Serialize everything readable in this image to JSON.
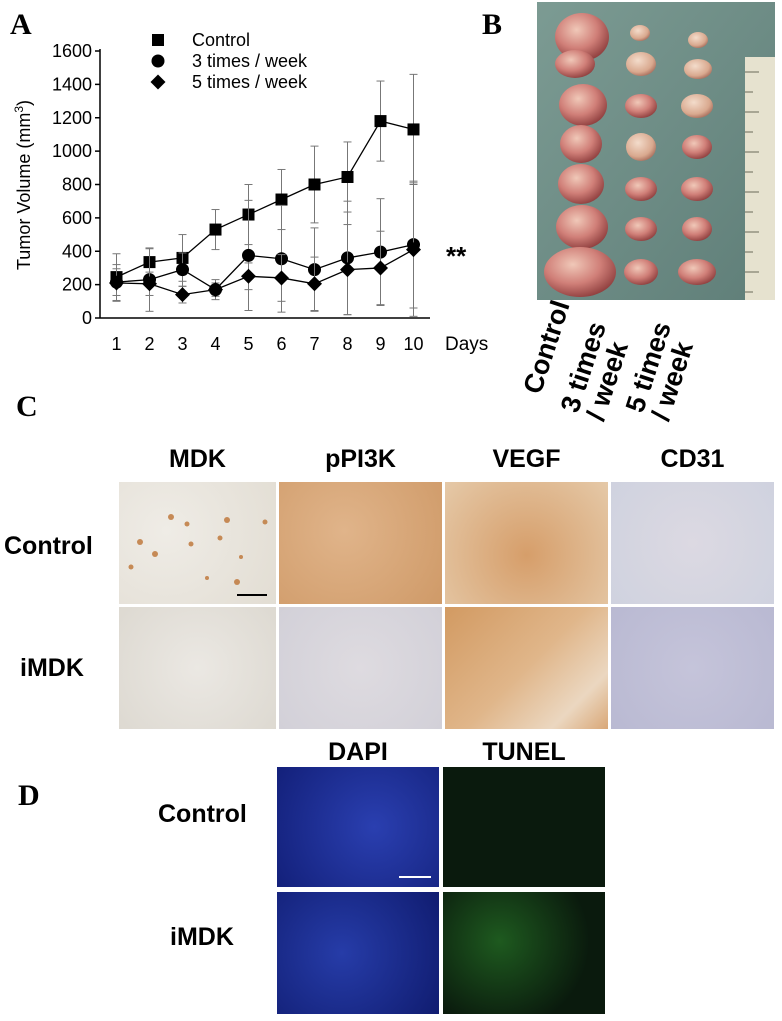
{
  "panels": {
    "a": "A",
    "b": "B",
    "c": "C",
    "d": "D"
  },
  "chart_data": {
    "type": "line",
    "ylabel": "Tumor Volume (mm",
    "ylabel_sup": "3",
    "ylabel_end": ")",
    "xlabel": "Days",
    "x": [
      1,
      2,
      3,
      4,
      5,
      6,
      7,
      8,
      9,
      10
    ],
    "ylim": [
      0,
      1600
    ],
    "yticks": [
      0,
      200,
      400,
      600,
      800,
      1000,
      1200,
      1400,
      1600
    ],
    "legend_position": "top",
    "series": [
      {
        "name": "Control",
        "marker": "square",
        "values": [
          245,
          335,
          360,
          530,
          620,
          710,
          800,
          845,
          1180,
          1130
        ],
        "errors": [
          140,
          80,
          140,
          120,
          180,
          180,
          230,
          210,
          240,
          330
        ]
      },
      {
        "name": "3 times / week",
        "marker": "circle",
        "values": [
          215,
          230,
          290,
          170,
          375,
          355,
          290,
          360,
          395,
          440
        ],
        "errors": [
          80,
          190,
          100,
          40,
          330,
          320,
          250,
          340,
          320,
          380
        ]
      },
      {
        "name": "5 times / week",
        "marker": "diamond",
        "values": [
          210,
          205,
          140,
          170,
          250,
          240,
          205,
          290,
          300,
          410
        ],
        "errors": [
          110,
          70,
          50,
          60,
          80,
          140,
          160,
          270,
          220,
          400
        ]
      }
    ],
    "annotation": "**"
  },
  "panel_b": {
    "labels": [
      "Control",
      "3 times\n/ week",
      "5 times\n/ week"
    ]
  },
  "panel_c": {
    "columns": [
      "MDK",
      "pPI3K",
      "VEGF",
      "CD31"
    ],
    "rows": [
      "Control",
      "iMDK"
    ]
  },
  "panel_d": {
    "columns": [
      "DAPI",
      "TUNEL"
    ],
    "rows": [
      "Control",
      "iMDK"
    ]
  }
}
